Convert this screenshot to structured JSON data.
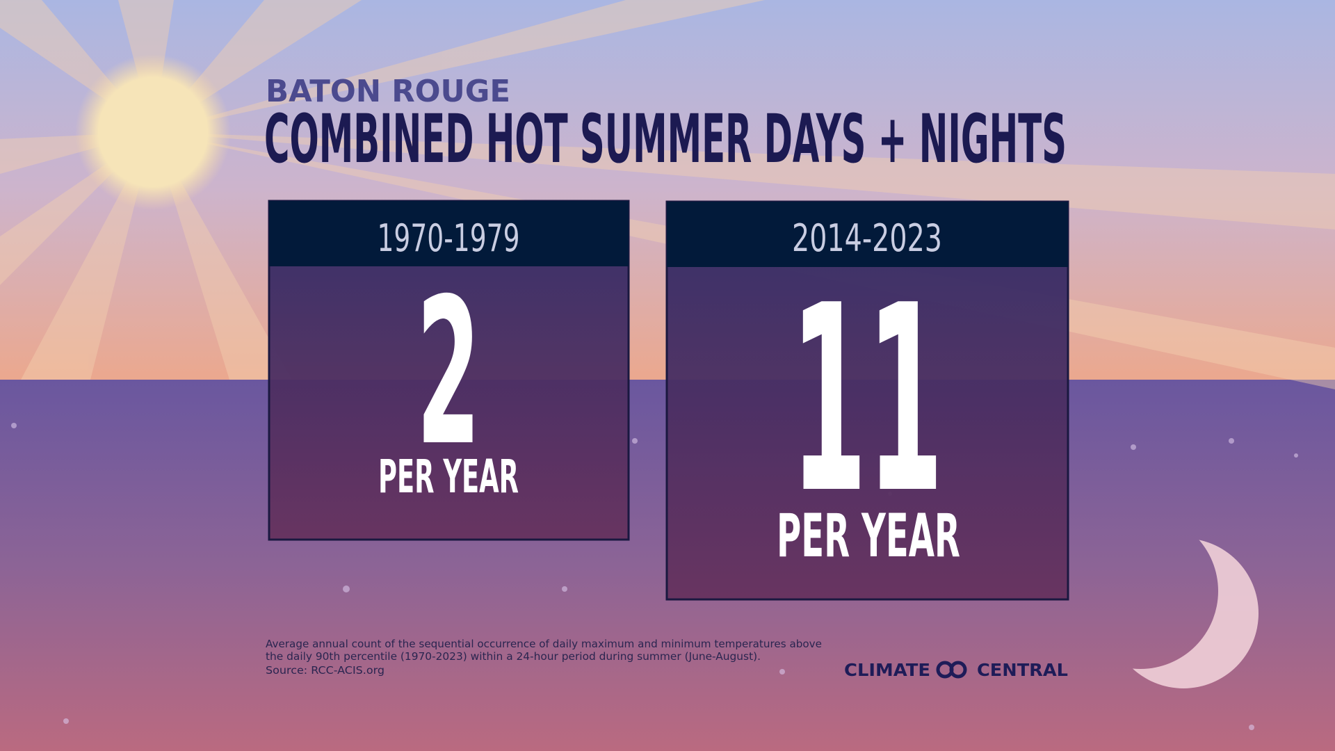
{
  "header": {
    "location": "BATON ROUGE",
    "title": "COMBINED HOT SUMMER DAYS + NIGHTS"
  },
  "cards": [
    {
      "period": "1970-1979",
      "value": 2,
      "unit": "PER YEAR"
    },
    {
      "period": "2014-2023",
      "value": 11,
      "unit": "PER YEAR"
    }
  ],
  "footnote": {
    "lines": [
      "Average annual count of the sequential occurrence of daily maximum and minimum temperatures above",
      "the daily 90th percentile (1970-2023) within a 24-hour period during summer (June-August).",
      "Source: RCC-ACIS.org"
    ]
  },
  "logo": {
    "left": "CLIMATE",
    "right": "CENTRAL"
  }
}
